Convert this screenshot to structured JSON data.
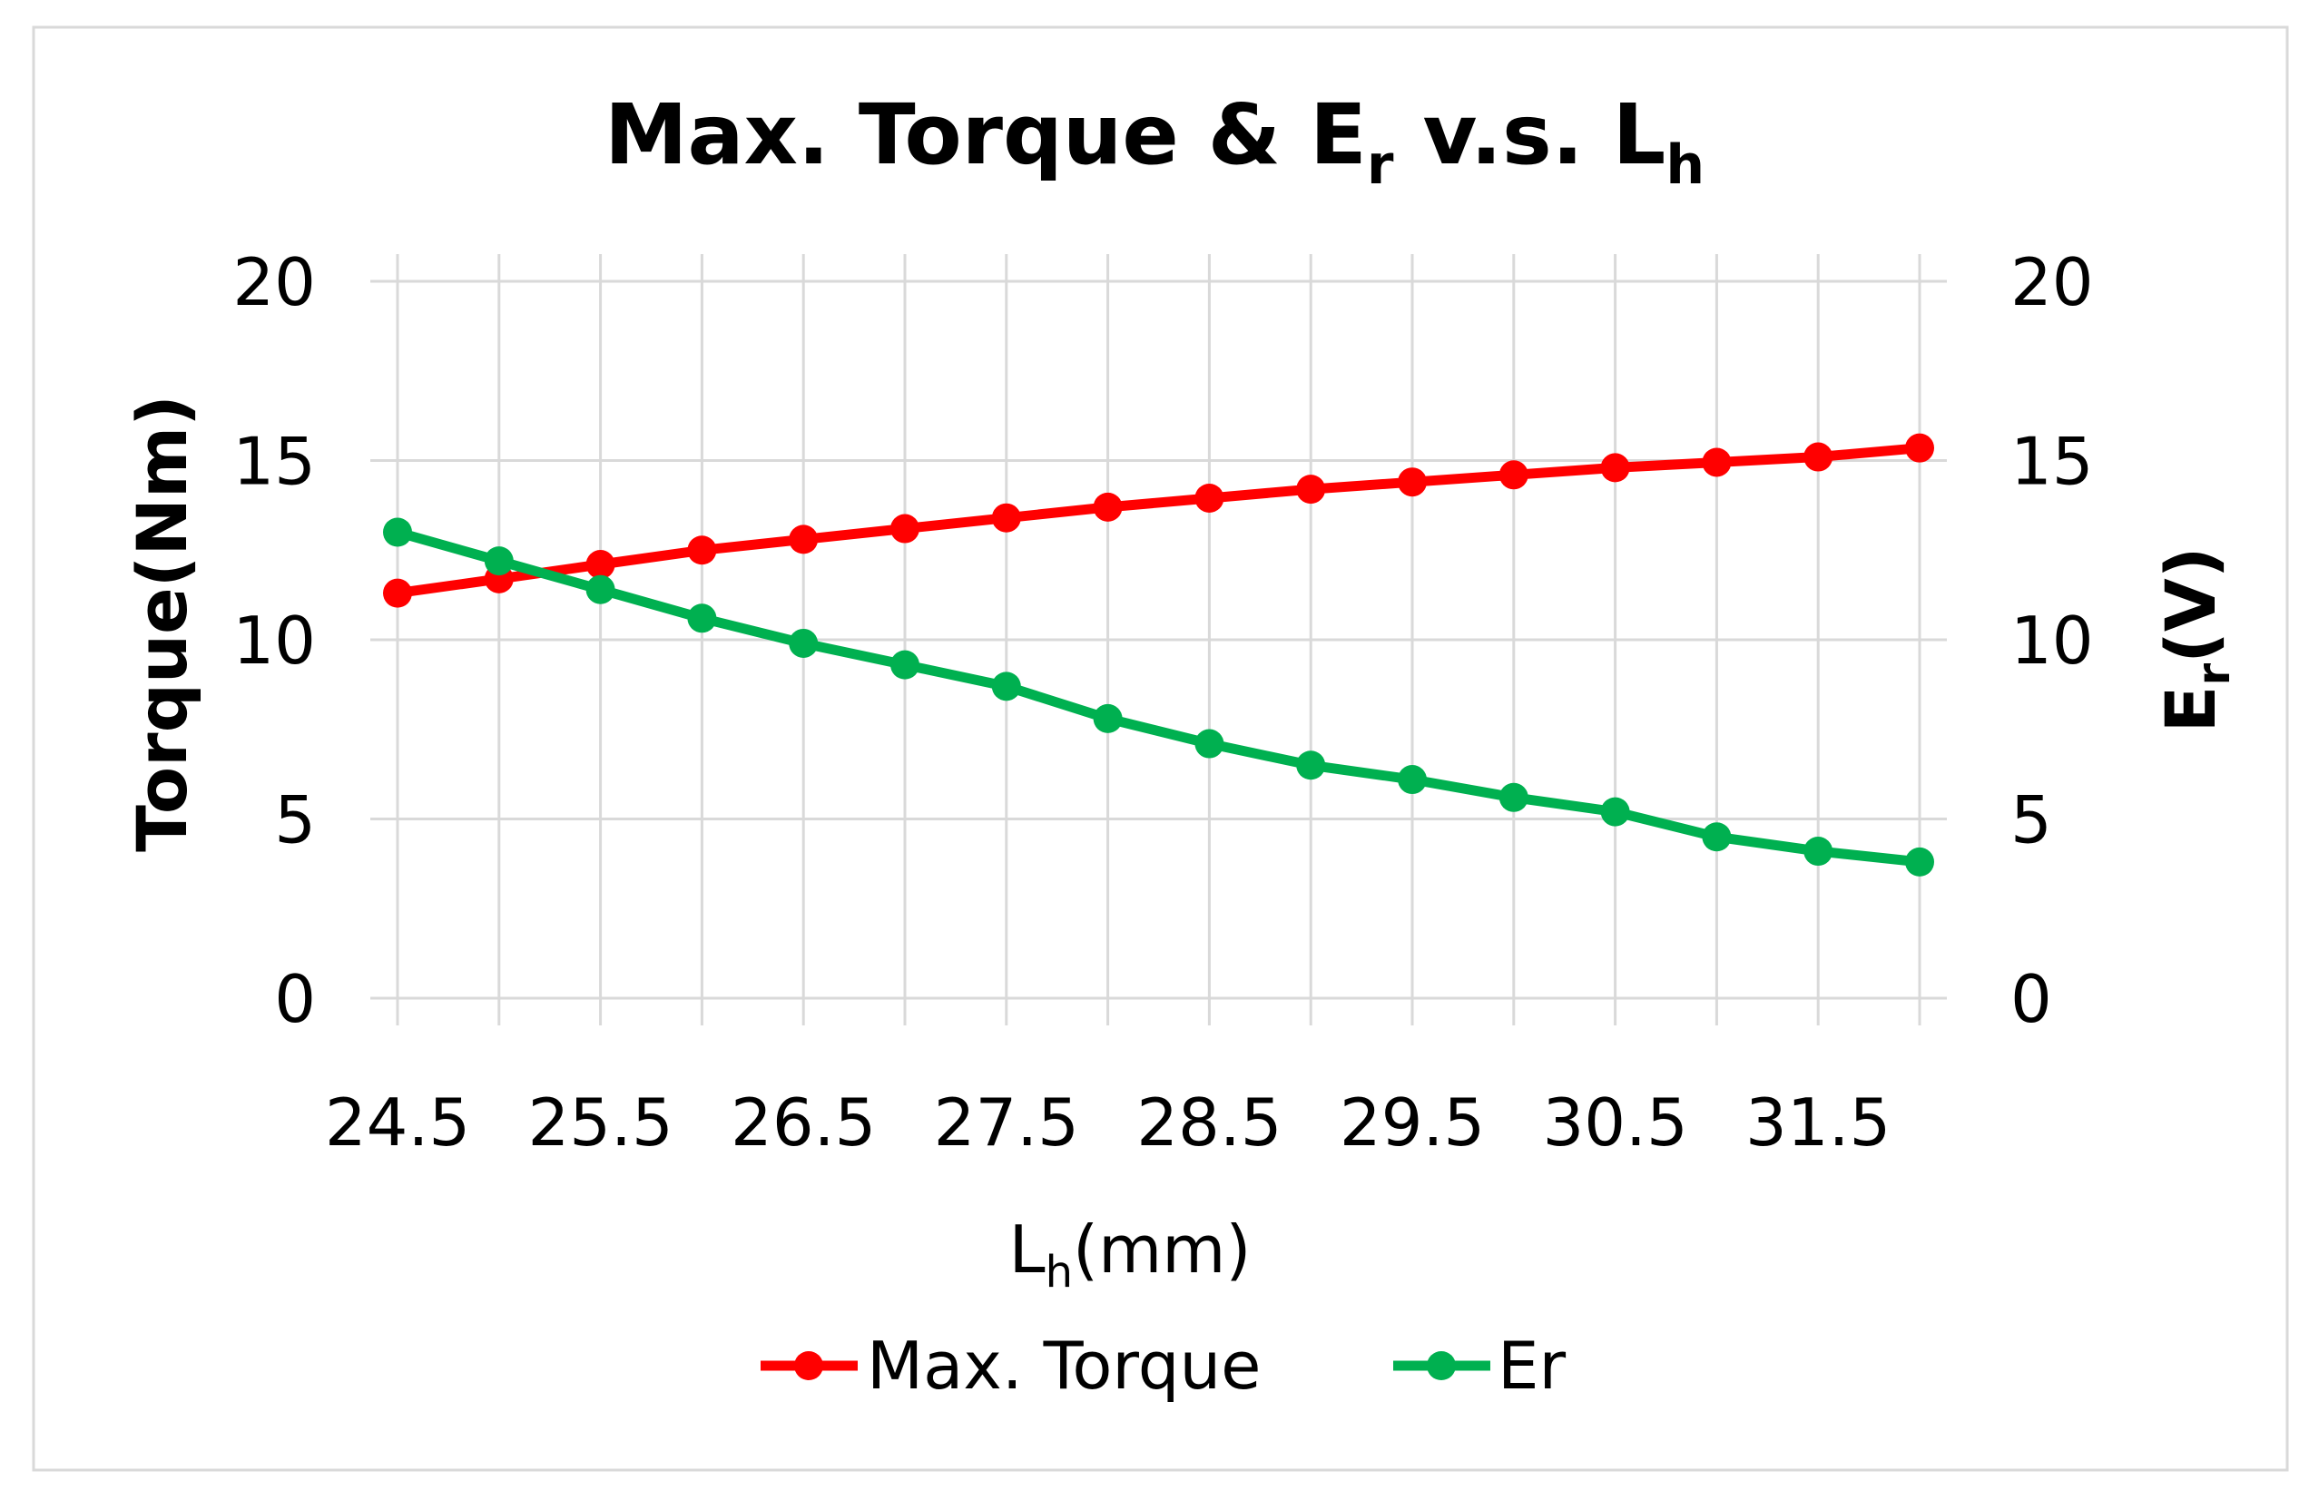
{
  "chart_data": {
    "type": "line",
    "title": "Max. Torque & E",
    "title_sub": "r",
    "title_mid": " v.s. L",
    "title_sub2": "h",
    "xlabel": "L",
    "xlabel_sub": "h",
    "xlabel_tail": "(mm)",
    "ylabel": "Torque(Nm)",
    "y2label": "E",
    "y2label_sub": "r",
    "y2label_tail": "(V)",
    "x": [
      24.5,
      25.0,
      25.5,
      26.0,
      26.5,
      27.0,
      27.5,
      28.0,
      28.5,
      29.0,
      29.5,
      30.0,
      30.5,
      31.0,
      31.5,
      32.0
    ],
    "x_tick_labels": [
      "24.5",
      "25.5",
      "26.5",
      "27.5",
      "28.5",
      "29.5",
      "30.5",
      "31.5"
    ],
    "x_tick_values": [
      24.5,
      25.5,
      26.5,
      27.5,
      28.5,
      29.5,
      30.5,
      31.5
    ],
    "y_ticks": [
      0,
      5,
      10,
      15,
      20
    ],
    "y2_ticks": [
      0,
      5,
      10,
      15,
      20
    ],
    "ylim": [
      0,
      20
    ],
    "y2lim": [
      0,
      20
    ],
    "xlim": [
      24.5,
      32.0
    ],
    "grid": true,
    "legend_position": "bottom",
    "series": [
      {
        "name": "Max. Torque",
        "color": "#ff0000",
        "axis": "left",
        "values": [
          11.3,
          11.7,
          12.1,
          12.5,
          12.8,
          13.1,
          13.4,
          13.7,
          13.95,
          14.2,
          14.4,
          14.6,
          14.8,
          14.95,
          15.1,
          15.35
        ]
      },
      {
        "name": "Er",
        "color": "#00b050",
        "axis": "right",
        "values": [
          13.0,
          12.2,
          11.4,
          10.6,
          9.9,
          9.3,
          8.7,
          7.8,
          7.1,
          6.5,
          6.1,
          5.6,
          5.2,
          4.5,
          4.1,
          3.8
        ]
      }
    ]
  }
}
